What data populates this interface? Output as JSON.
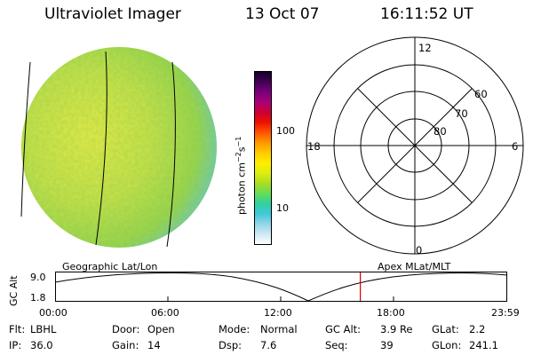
{
  "header": {
    "title": "Ultraviolet Imager",
    "date": "13 Oct 07",
    "time": "16:11:52 UT"
  },
  "colorbar": {
    "unit_prefix": "photon cm",
    "unit_exp1": "−2",
    "unit_mid": "s",
    "unit_exp2": "−1",
    "ticks": [
      "100",
      "10"
    ],
    "colors": [
      "#ffffff",
      "#cfe9f2",
      "#8fd5e8",
      "#40c8d8",
      "#33d0a0",
      "#66dd55",
      "#aadd22",
      "#ddee11",
      "#ffee00",
      "#ffcc00",
      "#ff9900",
      "#ff5500",
      "#ee1100",
      "#cc0033",
      "#aa0077",
      "#77007a",
      "#440055",
      "#150025"
    ]
  },
  "polar": {
    "mlt_labels": [
      "12",
      "18",
      "6",
      "0"
    ],
    "lat_labels": [
      "60",
      "70",
      "80"
    ]
  },
  "timeline": {
    "y_label": "GC Alt",
    "y_ticks": [
      "9.0",
      "1.8"
    ],
    "left_title": "Geographic Lat/Lon",
    "right_title": "Apex MLat/MLT",
    "x_ticks": [
      "00:00",
      "06:00",
      "12:00",
      "18:00",
      "23:59"
    ],
    "marker_time_hours": 16.2
  },
  "status": [
    [
      {
        "label": "Flt:",
        "value": "LBHL"
      },
      {
        "label": "Door:",
        "value": "Open"
      },
      {
        "label": "Mode:",
        "value": "Normal"
      },
      {
        "label": "GC Alt:",
        "value": "3.9 Re"
      },
      {
        "label": "GLat:",
        "value": "2.2"
      }
    ],
    [
      {
        "label": "IP:",
        "value": "36.0"
      },
      {
        "label": "Gain:",
        "value": "14"
      },
      {
        "label": "Dsp:",
        "value": "7.6"
      },
      {
        "label": "Seq:",
        "value": "39"
      },
      {
        "label": "GLon:",
        "value": "241.1"
      }
    ]
  ],
  "colors": {
    "disk_fill": "#b8e050",
    "disk_edge": "#7fd6c0",
    "marker": "#dd0000"
  }
}
